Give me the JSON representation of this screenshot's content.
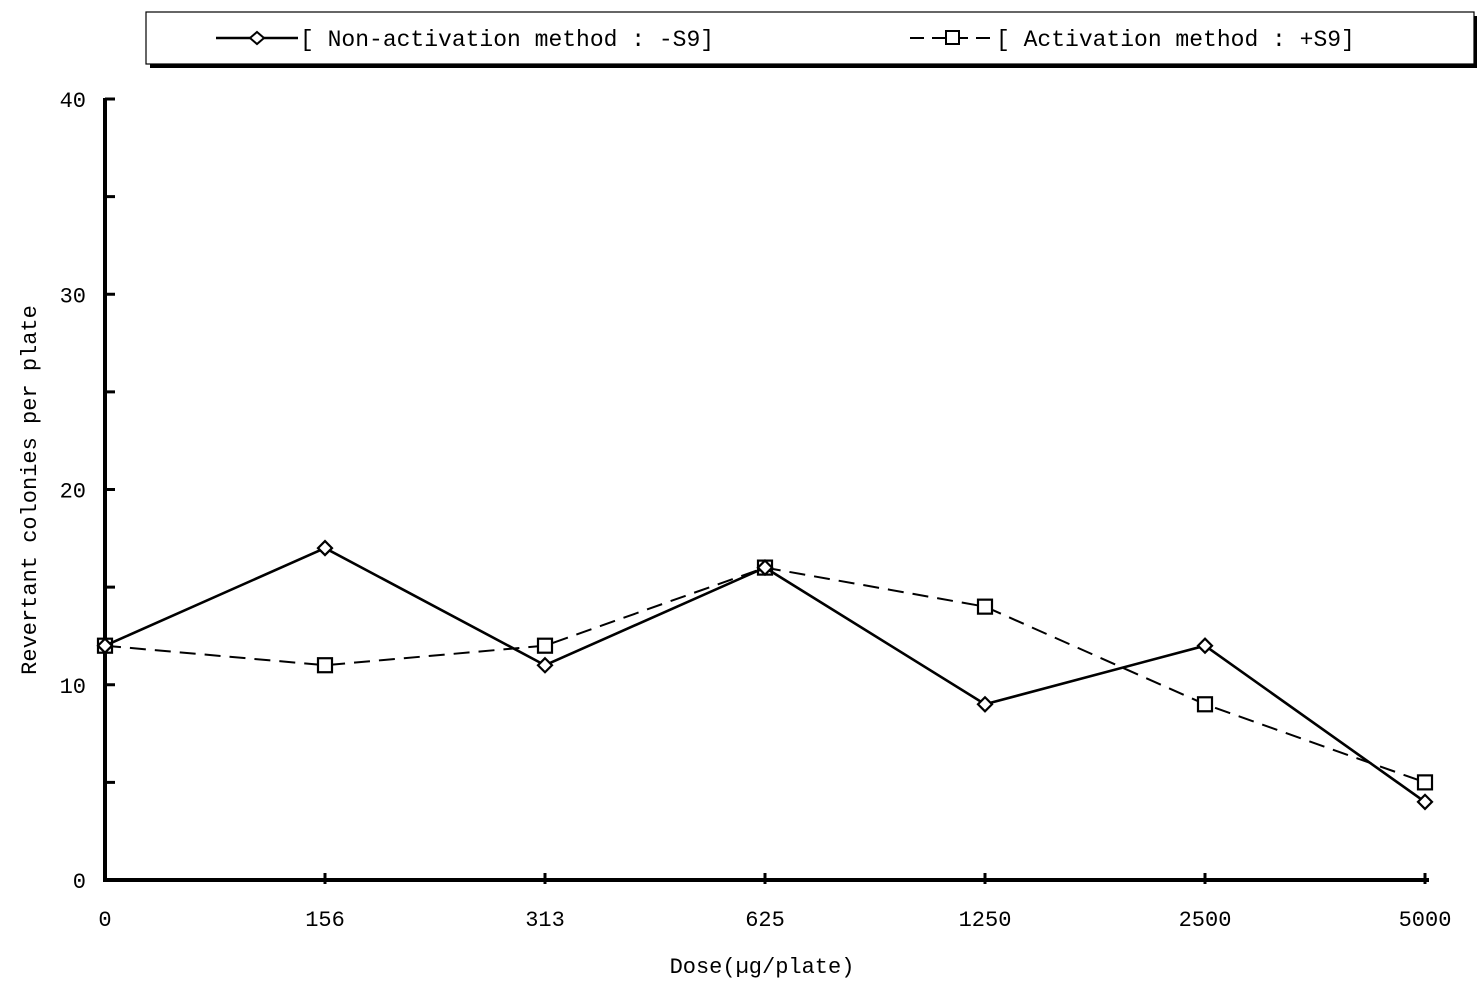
{
  "chart_data": {
    "type": "line",
    "title": "",
    "xlabel": "Dose(µg/plate)",
    "ylabel": "Revertant colonies per plate",
    "categories": [
      "0",
      "156",
      "313",
      "625",
      "1250",
      "2500",
      "5000"
    ],
    "ylim": [
      0,
      40
    ],
    "yticks": [
      "0",
      "10",
      "20",
      "30",
      "40"
    ],
    "grid": false,
    "legend_position": "top",
    "series": [
      {
        "name": "[ Non-activation method : -S9]",
        "values": [
          12,
          17,
          11,
          16,
          9,
          12,
          4
        ],
        "marker": "diamond",
        "line_style": "solid"
      },
      {
        "name": "[ Activation method : +S9]",
        "values": [
          12,
          11,
          12,
          16,
          14,
          9,
          5
        ],
        "marker": "square",
        "line_style": "dashed"
      }
    ]
  }
}
